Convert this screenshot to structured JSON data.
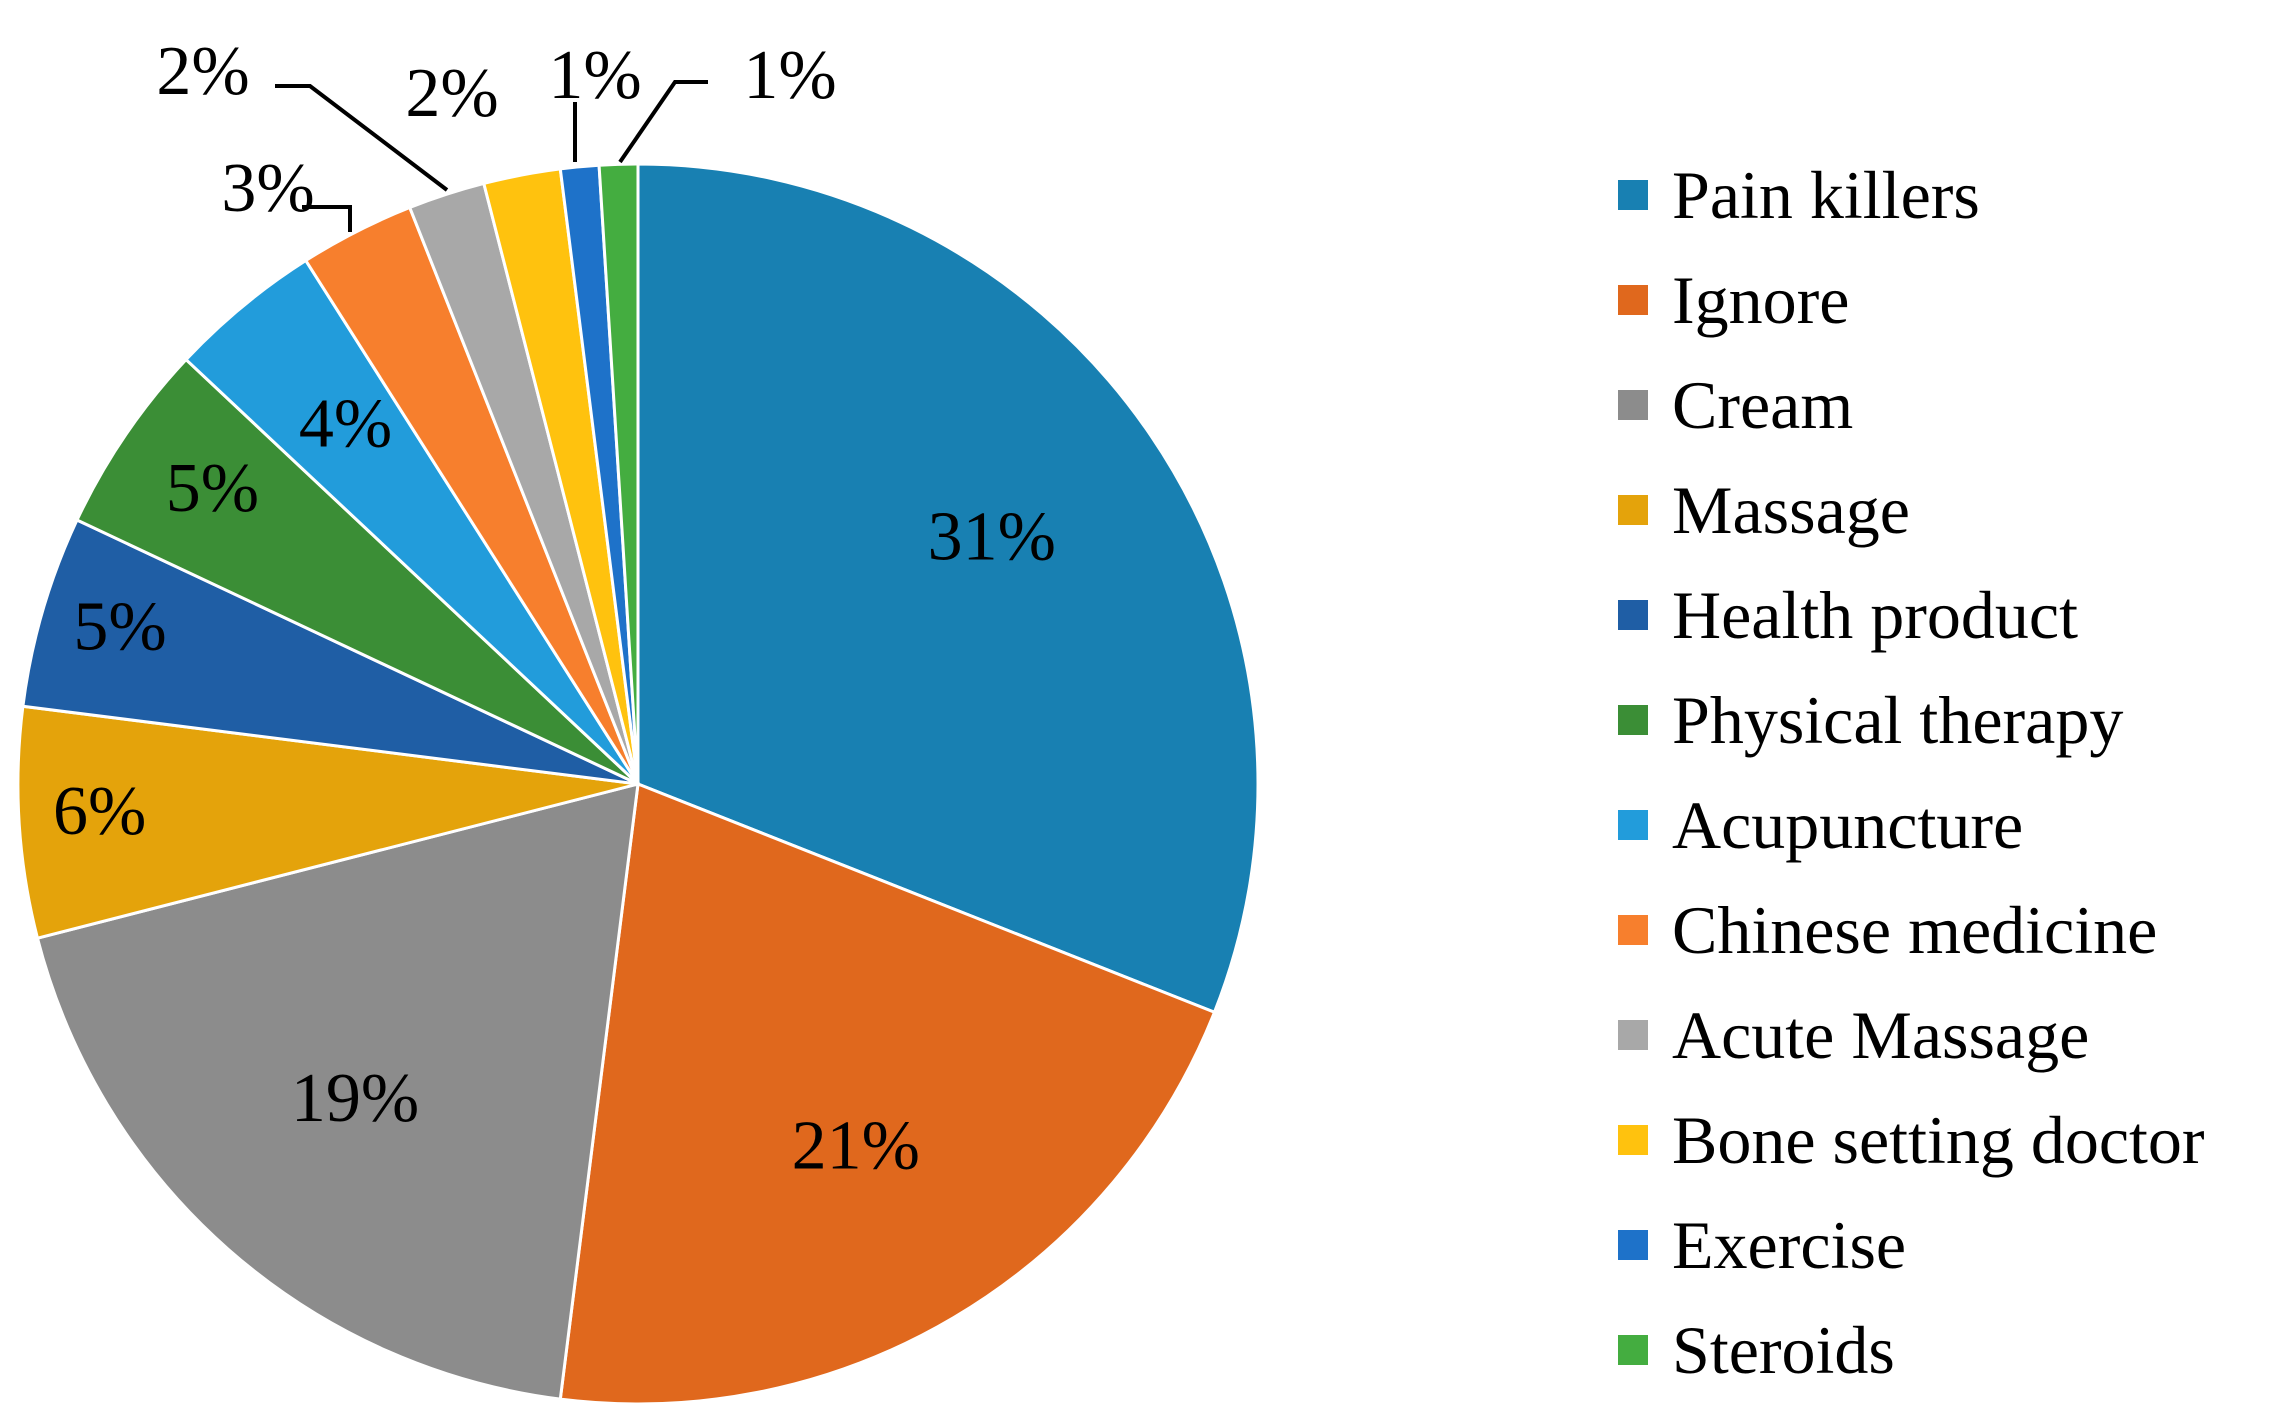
{
  "chart_data": {
    "type": "pie",
    "categories": [
      "Pain killers",
      "Ignore",
      "Cream",
      "Massage",
      "Health product",
      "Physical therapy",
      "Acupuncture",
      "Chinese medicine",
      "Acute Massage",
      "Bone setting doctor",
      "Exercise",
      "Steroids"
    ],
    "values": [
      31,
      21,
      19,
      6,
      5,
      5,
      4,
      3,
      2,
      2,
      1,
      1
    ],
    "data_labels": [
      "31%",
      "21%",
      "19%",
      "6%",
      "5%",
      "5%",
      "4%",
      "3%",
      "2%",
      "2%",
      "1%",
      "1%"
    ],
    "colors": [
      "#1880B2",
      "#E0681D",
      "#8C8C8C",
      "#E4A30B",
      "#1F5EA5",
      "#3B8E36",
      "#229CDB",
      "#F77F2D",
      "#A8A8A8",
      "#FFC20E",
      "#1E72C9",
      "#44AD40"
    ],
    "start_angle_deg": 0,
    "direction": "clockwise",
    "legend_position": "right"
  }
}
